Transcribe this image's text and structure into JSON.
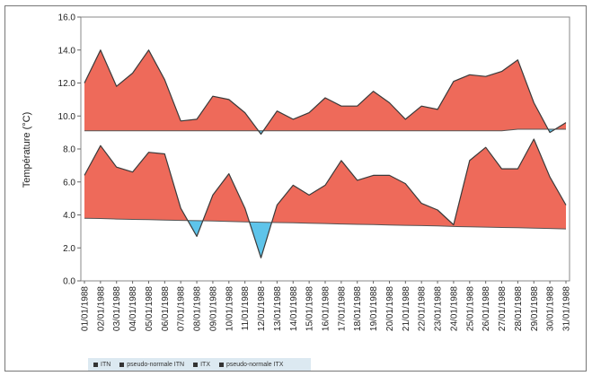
{
  "chart_data": {
    "type": "area",
    "ylabel": "Température (°C)",
    "ylim": [
      0,
      16
    ],
    "yticks": [
      "16.0",
      "14.0",
      "12.0",
      "10.0",
      "8.0",
      "6.0",
      "4.0",
      "2.0",
      "0.0"
    ],
    "ytick_values": [
      16,
      14,
      12,
      10,
      8,
      6,
      4,
      2,
      0
    ],
    "categories": [
      "01/01/1988",
      "02/01/1988",
      "03/01/1988",
      "04/01/1988",
      "05/01/1988",
      "06/01/1988",
      "07/01/1988",
      "08/01/1988",
      "09/01/1988",
      "10/01/1988",
      "11/01/1988",
      "12/01/1988",
      "13/01/1988",
      "14/01/1988",
      "15/01/1988",
      "16/01/1988",
      "17/01/1988",
      "18/01/1988",
      "19/01/1988",
      "20/01/1988",
      "21/01/1988",
      "22/01/1988",
      "23/01/1988",
      "24/01/1988",
      "25/01/1988",
      "26/01/1988",
      "27/01/1988",
      "28/01/1988",
      "29/01/1988",
      "30/01/1988",
      "31/01/1988"
    ],
    "series": [
      {
        "name": "ITX",
        "values": [
          12.0,
          14.0,
          11.8,
          12.6,
          14.0,
          12.2,
          9.7,
          9.8,
          11.2,
          11.0,
          10.2,
          8.9,
          10.3,
          9.8,
          10.2,
          11.1,
          10.6,
          10.6,
          11.5,
          10.8,
          9.8,
          10.6,
          10.4,
          12.1,
          12.5,
          12.4,
          12.7,
          13.4,
          10.8,
          9.0,
          9.6
        ]
      },
      {
        "name": "pseudo-normale ITX",
        "values": [
          9.1,
          9.1,
          9.1,
          9.1,
          9.1,
          9.1,
          9.1,
          9.1,
          9.1,
          9.1,
          9.1,
          9.1,
          9.1,
          9.1,
          9.1,
          9.1,
          9.1,
          9.1,
          9.1,
          9.1,
          9.1,
          9.1,
          9.1,
          9.1,
          9.1,
          9.1,
          9.1,
          9.2,
          9.2,
          9.2,
          9.2
        ]
      },
      {
        "name": "ITN",
        "values": [
          6.4,
          8.2,
          6.9,
          6.6,
          7.8,
          7.7,
          4.4,
          2.7,
          5.2,
          6.5,
          4.4,
          1.4,
          4.6,
          5.8,
          5.2,
          5.8,
          7.3,
          6.1,
          6.4,
          6.4,
          5.9,
          4.7,
          4.3,
          3.4,
          7.3,
          8.1,
          6.8,
          6.8,
          8.6,
          6.3,
          4.6
        ]
      },
      {
        "name": "pseudo-normale ITN",
        "values": [
          3.8,
          3.78,
          3.75,
          3.73,
          3.71,
          3.69,
          3.67,
          3.65,
          3.63,
          3.6,
          3.58,
          3.56,
          3.54,
          3.52,
          3.5,
          3.48,
          3.45,
          3.43,
          3.41,
          3.39,
          3.37,
          3.35,
          3.33,
          3.3,
          3.28,
          3.26,
          3.24,
          3.22,
          3.2,
          3.18,
          3.15
        ]
      }
    ],
    "colors": {
      "above": "#ee6a5a",
      "below": "#5ec4ea",
      "line": "#3a3a3a"
    },
    "legend_position": "bottom-left",
    "grid": false
  },
  "legend": [
    {
      "label": "ITN"
    },
    {
      "label": "pseudo-normale ITN"
    },
    {
      "label": "ITX"
    },
    {
      "label": "pseudo-normale ITX"
    }
  ]
}
